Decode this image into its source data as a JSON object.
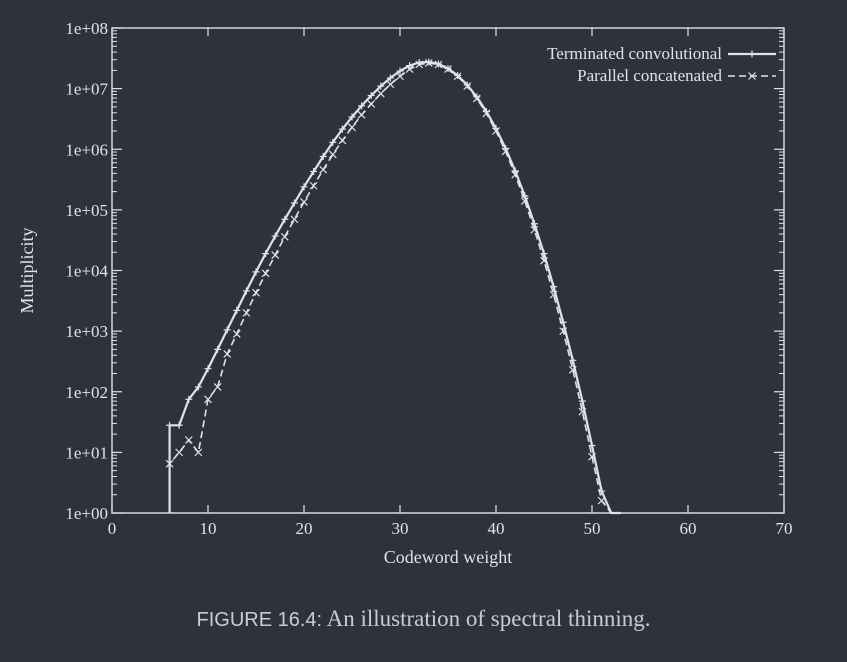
{
  "chart_data": {
    "type": "line",
    "xlabel": "Codeword weight",
    "ylabel": "Multiplicity",
    "xlim": [
      0,
      70
    ],
    "ylim": [
      1,
      100000000
    ],
    "yscale": "log",
    "x_ticks": [
      "0",
      "10",
      "20",
      "30",
      "40",
      "50",
      "60",
      "70"
    ],
    "y_ticks": [
      "1e+00",
      "1e+01",
      "1e+02",
      "1e+03",
      "1e+04",
      "1e+05",
      "1e+06",
      "1e+07",
      "1e+08"
    ],
    "legend_position": "top-right",
    "grid": false,
    "series": [
      {
        "name": "Terminated convolutional",
        "style": "solid",
        "marker": "plus",
        "points": [
          [
            6,
            1
          ],
          [
            6,
            28
          ],
          [
            7,
            28
          ],
          [
            8,
            75
          ],
          [
            9,
            120
          ],
          [
            10,
            240
          ],
          [
            11,
            500
          ],
          [
            12,
            1050
          ],
          [
            13,
            2200
          ],
          [
            14,
            4600
          ],
          [
            15,
            9500
          ],
          [
            16,
            19000
          ],
          [
            17,
            37000
          ],
          [
            18,
            70000
          ],
          [
            19,
            130000
          ],
          [
            20,
            240000
          ],
          [
            21,
            430000
          ],
          [
            22,
            760000
          ],
          [
            23,
            1300000
          ],
          [
            24,
            2150000
          ],
          [
            25,
            3400000
          ],
          [
            26,
            5200000
          ],
          [
            27,
            7700000
          ],
          [
            28,
            11000000
          ],
          [
            29,
            15000000
          ],
          [
            30,
            19500000
          ],
          [
            31,
            24000000
          ],
          [
            32,
            27000000
          ],
          [
            33,
            27500000
          ],
          [
            34,
            25500000
          ],
          [
            35,
            21500000
          ],
          [
            36,
            16500000
          ],
          [
            37,
            11500000
          ],
          [
            38,
            7300000
          ],
          [
            39,
            4200000
          ],
          [
            40,
            2200000
          ],
          [
            41,
            1030000
          ],
          [
            42,
            440000
          ],
          [
            43,
            170000
          ],
          [
            44,
            59000
          ],
          [
            45,
            19000
          ],
          [
            46,
            5400
          ],
          [
            47,
            1400
          ],
          [
            48,
            330
          ],
          [
            49,
            70
          ],
          [
            50,
            13
          ],
          [
            51,
            2.3
          ],
          [
            52,
            1
          ],
          [
            53,
            1
          ]
        ]
      },
      {
        "name": "Parallel concatenated",
        "style": "dashed",
        "marker": "cross",
        "points": [
          [
            6,
            1
          ],
          [
            6,
            6.5
          ],
          [
            7,
            10
          ],
          [
            8,
            16
          ],
          [
            9,
            10
          ],
          [
            10,
            75
          ],
          [
            11,
            120
          ],
          [
            12,
            420
          ],
          [
            13,
            900
          ],
          [
            14,
            2000
          ],
          [
            15,
            4300
          ],
          [
            16,
            9000
          ],
          [
            17,
            18000
          ],
          [
            18,
            36000
          ],
          [
            19,
            70000
          ],
          [
            20,
            135000
          ],
          [
            21,
            250000
          ],
          [
            22,
            460000
          ],
          [
            23,
            820000
          ],
          [
            24,
            1400000
          ],
          [
            25,
            2300000
          ],
          [
            26,
            3700000
          ],
          [
            27,
            5600000
          ],
          [
            28,
            8300000
          ],
          [
            29,
            11800000
          ],
          [
            30,
            16000000
          ],
          [
            31,
            21000000
          ],
          [
            32,
            25000000
          ],
          [
            33,
            26500000
          ],
          [
            34,
            25000000
          ],
          [
            35,
            21000000
          ],
          [
            36,
            16000000
          ],
          [
            37,
            11000000
          ],
          [
            38,
            6900000
          ],
          [
            39,
            3900000
          ],
          [
            40,
            2000000
          ],
          [
            41,
            920000
          ],
          [
            42,
            380000
          ],
          [
            43,
            140000
          ],
          [
            44,
            47000
          ],
          [
            45,
            14500
          ],
          [
            46,
            4000
          ],
          [
            47,
            1000
          ],
          [
            48,
            230
          ],
          [
            49,
            47
          ],
          [
            50,
            8.5
          ],
          [
            51,
            1.6
          ],
          [
            52,
            1
          ],
          [
            53,
            1
          ]
        ]
      }
    ]
  },
  "caption": {
    "label": "FIGURE 16.4:",
    "text": " An illustration of spectral thinning."
  }
}
